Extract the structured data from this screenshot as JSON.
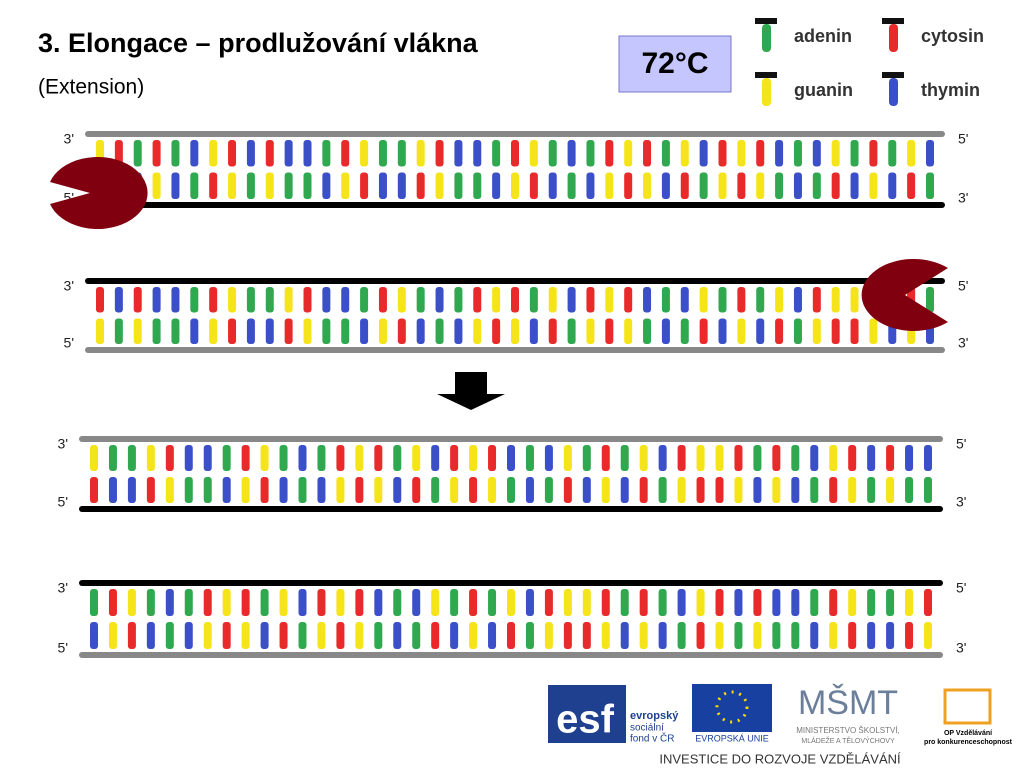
{
  "header": {
    "title": "3. Elongace – prodlužování vlákna",
    "subtitle": "(Extension)",
    "temperature": "72°C"
  },
  "legend": {
    "items": [
      "adenin",
      "cytosin",
      "guanin",
      "thymin"
    ]
  },
  "helices": [
    {
      "left": [
        "3'",
        "5'"
      ],
      "right": [
        "5'",
        "3'"
      ]
    },
    {
      "left": [
        "3'",
        "5'"
      ],
      "right": [
        "5'",
        "3'"
      ]
    },
    {
      "left": [
        "3'",
        "5'"
      ],
      "right": [
        "5'",
        "3'"
      ]
    },
    {
      "left": [
        "3'",
        "5'"
      ],
      "right": [
        "5'",
        "3'"
      ]
    }
  ],
  "footer": {
    "esf": "esf",
    "esf_lines": [
      "evropský",
      "sociální",
      "fond v ČR"
    ],
    "eu": "EVROPSKÁ UNIE",
    "msmt_logo": "MŠMT",
    "msmt_lines": [
      "MINISTERSTVO ŠKOLSTVÍ,",
      "MLÁDEŽE A TĚLOVÝCHOVY"
    ],
    "op_lines": [
      "OP Vzdělávání",
      "pro konkurenceschopnost"
    ],
    "tagline": "INVESTICE DO ROZVOJE VZDĚLÁVÁNÍ"
  }
}
